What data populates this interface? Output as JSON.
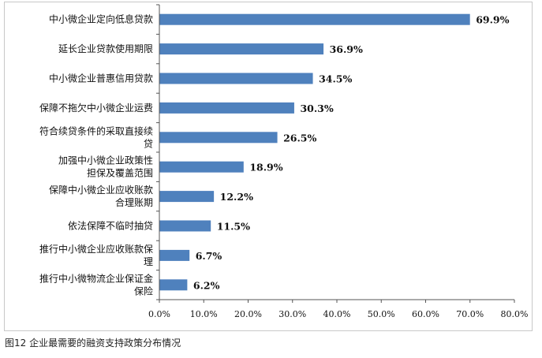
{
  "caption": "图12 企业最需要的融资支持政策分布情况",
  "chart_data": {
    "type": "bar",
    "orientation": "horizontal",
    "title": "",
    "xlabel": "",
    "ylabel": "",
    "xlim": [
      0,
      80
    ],
    "x_ticks": [
      "0.0%",
      "10.0%",
      "20.0%",
      "30.0%",
      "40.0%",
      "50.0%",
      "60.0%",
      "70.0%",
      "80.0%"
    ],
    "bar_color": "#4F81BD",
    "categories": [
      [
        "中小微企业定向低息贷款"
      ],
      [
        "延长企业贷款使用期限"
      ],
      [
        "中小微企业普惠信用贷款"
      ],
      [
        "保障不拖欠中小微企业运费"
      ],
      [
        "符合续贷条件的采取直接续",
        "贷"
      ],
      [
        "加强中小微企业政策性",
        "担保及覆盖范围"
      ],
      [
        "保障中小微企业应收账款",
        "合理账期"
      ],
      [
        "依法保障不临时抽贷"
      ],
      [
        "推行中小微企业应收账款保",
        "理"
      ],
      [
        "推行中小微物流企业保证金",
        "保险"
      ]
    ],
    "values": [
      69.9,
      36.9,
      34.5,
      30.3,
      26.5,
      18.9,
      12.2,
      11.5,
      6.7,
      6.2
    ],
    "value_labels": [
      "69.9%",
      "36.9%",
      "34.5%",
      "30.3%",
      "26.5%",
      "18.9%",
      "12.2%",
      "11.5%",
      "6.7%",
      "6.2%"
    ]
  }
}
